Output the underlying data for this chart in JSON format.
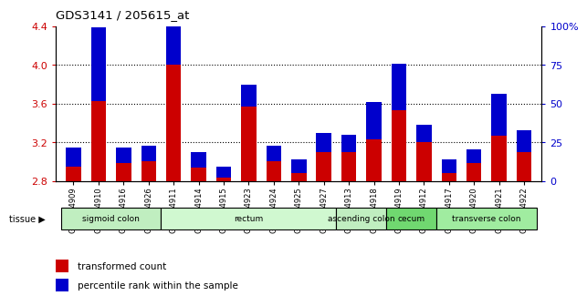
{
  "title": "GDS3141 / 205615_at",
  "samples": [
    "GSM234909",
    "GSM234910",
    "GSM234916",
    "GSM234926",
    "GSM234911",
    "GSM234914",
    "GSM234915",
    "GSM234923",
    "GSM234924",
    "GSM234925",
    "GSM234927",
    "GSM234913",
    "GSM234918",
    "GSM234919",
    "GSM234912",
    "GSM234917",
    "GSM234920",
    "GSM234921",
    "GSM234922"
  ],
  "red_values": [
    2.95,
    3.62,
    2.98,
    3.0,
    4.0,
    2.94,
    2.83,
    3.57,
    3.0,
    2.88,
    3.1,
    3.1,
    3.23,
    3.53,
    3.2,
    2.88,
    2.98,
    3.27,
    3.1
  ],
  "blue_pct": [
    12,
    48,
    10,
    10,
    65,
    10,
    7,
    14,
    10,
    9,
    12,
    11,
    24,
    30,
    11,
    9,
    9,
    27,
    14
  ],
  "baseline": 2.8,
  "ylim_left": [
    2.8,
    4.4
  ],
  "ylim_right": [
    0,
    100
  ],
  "yticks_left": [
    2.8,
    3.2,
    3.6,
    4.0,
    4.4
  ],
  "yticks_right": [
    0,
    25,
    50,
    75,
    100
  ],
  "yticks_right_labels": [
    "0",
    "25",
    "50",
    "75",
    "100%"
  ],
  "red_color": "#cc0000",
  "blue_color": "#0000cc",
  "tissue_groups": [
    {
      "label": "sigmoid colon",
      "start": 0,
      "end": 4,
      "color": "#c0eec0"
    },
    {
      "label": "rectum",
      "start": 4,
      "end": 11,
      "color": "#d0f8d0"
    },
    {
      "label": "ascending colon",
      "start": 11,
      "end": 13,
      "color": "#c0eec0"
    },
    {
      "label": "cecum",
      "start": 13,
      "end": 15,
      "color": "#70d870"
    },
    {
      "label": "transverse colon",
      "start": 15,
      "end": 19,
      "color": "#a0eca0"
    }
  ],
  "bar_width": 0.6,
  "background_color": "#ffffff",
  "plot_bg_color": "#ffffff",
  "grid_color": "#000000",
  "tick_label_color_left": "#cc0000",
  "tick_label_color_right": "#0000cc",
  "gridlines_at": [
    3.2,
    3.6,
    4.0
  ]
}
